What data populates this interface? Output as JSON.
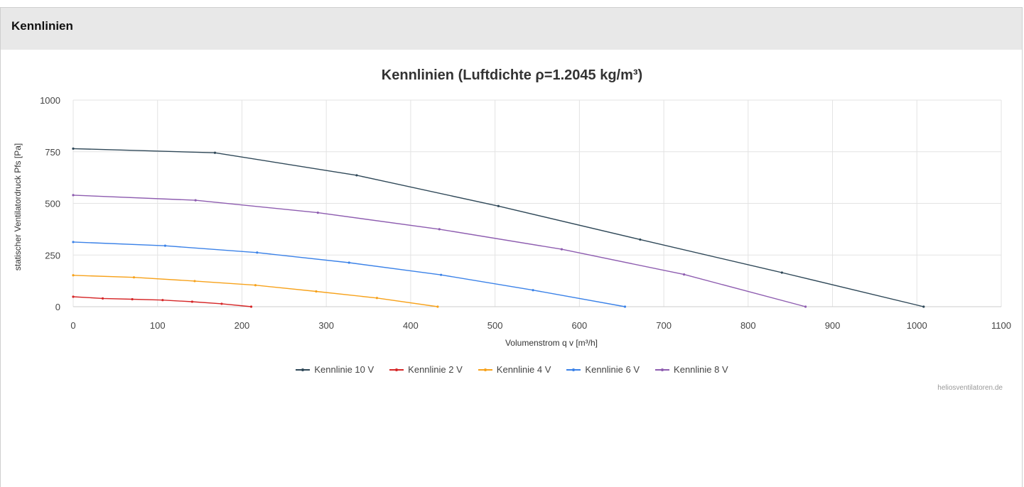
{
  "panel": {
    "title": "Kennlinien"
  },
  "credit": "heliosventilatoren.de",
  "chart_data": {
    "type": "line",
    "title": "Kennlinien (Luftdichte ρ=1.2045 kg/m³)",
    "xlabel": "Volumenstrom q v [m³/h]",
    "ylabel": "statischer Ventilatordruck Pfs [Pa]",
    "xlim": [
      0,
      1100
    ],
    "ylim": [
      0,
      1000
    ],
    "xticks": [
      0,
      100,
      200,
      300,
      400,
      500,
      600,
      700,
      800,
      900,
      1000,
      1100
    ],
    "yticks": [
      0,
      250,
      500,
      750,
      1000
    ],
    "grid": true,
    "legend": "bottom-center",
    "series": [
      {
        "name": "Kennlinie 10 V",
        "color": "#2f4858",
        "points": [
          [
            0,
            765
          ],
          [
            168,
            745
          ],
          [
            336,
            636
          ],
          [
            504,
            487
          ],
          [
            672,
            325
          ],
          [
            840,
            165
          ],
          [
            1008,
            0
          ]
        ]
      },
      {
        "name": "Kennlinie 2 V",
        "color": "#d62728",
        "points": [
          [
            0,
            48
          ],
          [
            35,
            40
          ],
          [
            70,
            36
          ],
          [
            106,
            32
          ],
          [
            141,
            24
          ],
          [
            176,
            14
          ],
          [
            211,
            0
          ]
        ]
      },
      {
        "name": "Kennlinie 4 V",
        "color": "#f7a21b",
        "points": [
          [
            0,
            152
          ],
          [
            72,
            142
          ],
          [
            144,
            124
          ],
          [
            216,
            104
          ],
          [
            288,
            74
          ],
          [
            360,
            42
          ],
          [
            432,
            0
          ]
        ]
      },
      {
        "name": "Kennlinie 6 V",
        "color": "#3b82e8",
        "points": [
          [
            0,
            313
          ],
          [
            109,
            295
          ],
          [
            218,
            262
          ],
          [
            327,
            213
          ],
          [
            436,
            154
          ],
          [
            545,
            80
          ],
          [
            654,
            0
          ]
        ]
      },
      {
        "name": "Kennlinie 8 V",
        "color": "#8e5db0",
        "points": [
          [
            0,
            540
          ],
          [
            145,
            515
          ],
          [
            290,
            455
          ],
          [
            434,
            375
          ],
          [
            579,
            278
          ],
          [
            724,
            156
          ],
          [
            868,
            0
          ]
        ]
      }
    ]
  }
}
